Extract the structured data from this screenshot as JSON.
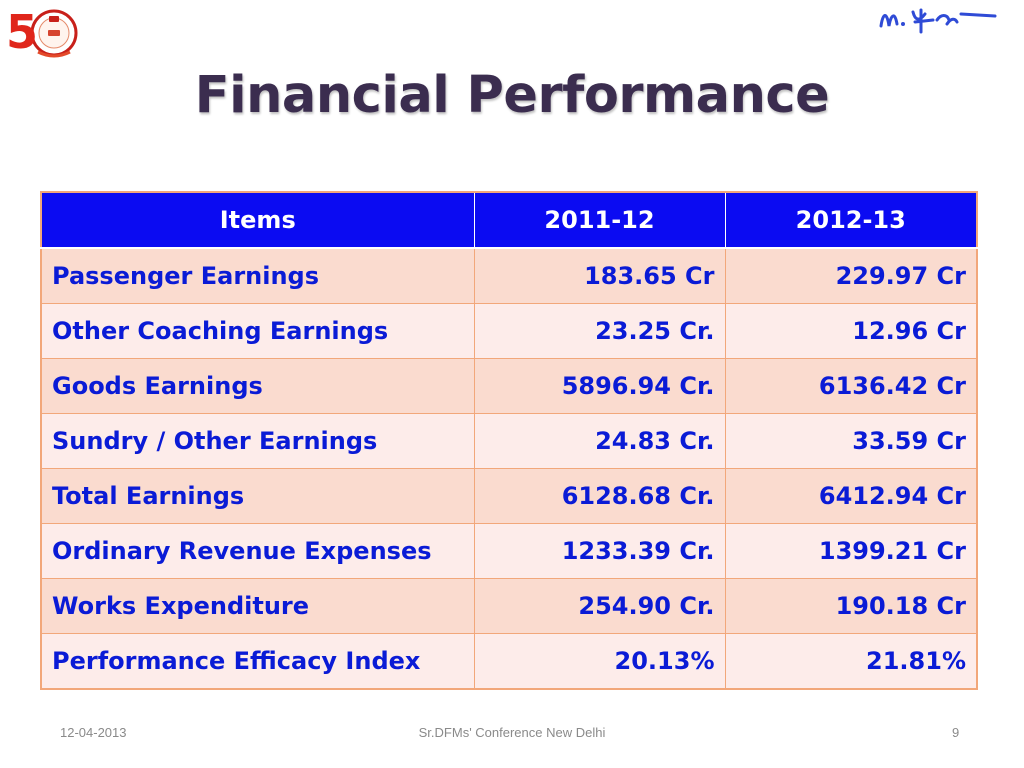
{
  "slide": {
    "title": "Financial Performance",
    "logo": {
      "icon": "anniversary-50-logo-icon",
      "number_text": "5",
      "colors": {
        "number": "#e0261b",
        "emblem": "#c8201a"
      }
    },
    "signature": {
      "icon": "handwritten-signature-icon",
      "color": "#2f4bd6"
    },
    "table": {
      "headers": [
        "Items",
        "2011-12",
        "2012-13"
      ],
      "rows": [
        {
          "item": "Passenger Earnings",
          "y2011_12": "183.65 Cr",
          "y2012_13": "229.97 Cr"
        },
        {
          "item": "Other Coaching Earnings",
          "y2011_12": "23.25 Cr.",
          "y2012_13": "12.96 Cr"
        },
        {
          "item": "Goods Earnings",
          "y2011_12": "5896.94 Cr.",
          "y2012_13": "6136.42 Cr"
        },
        {
          "item": "Sundry / Other Earnings",
          "y2011_12": "24.83 Cr.",
          "y2012_13": "33.59 Cr"
        },
        {
          "item": "Total Earnings",
          "y2011_12": "6128.68 Cr.",
          "y2012_13": "6412.94 Cr"
        },
        {
          "item": "Ordinary Revenue Expenses",
          "y2011_12": "1233.39 Cr.",
          "y2012_13": "1399.21 Cr"
        },
        {
          "item": "Works Expenditure",
          "y2011_12": "254.90 Cr.",
          "y2012_13": "190.18 Cr"
        },
        {
          "item": "Performance Efficacy Index",
          "y2011_12": "20.13%",
          "y2012_13": "21.81%"
        }
      ],
      "colors": {
        "header_bg": "#0b0bf2",
        "header_text": "#ffffff",
        "row_odd_bg": "#fadbcf",
        "row_even_bg": "#fdecea",
        "cell_text": "#0a1bd6",
        "border": "#f2a77a"
      }
    },
    "footer": {
      "date": "12-04-2013",
      "center": "Sr.DFMs' Conference New Delhi",
      "page": "9"
    }
  }
}
